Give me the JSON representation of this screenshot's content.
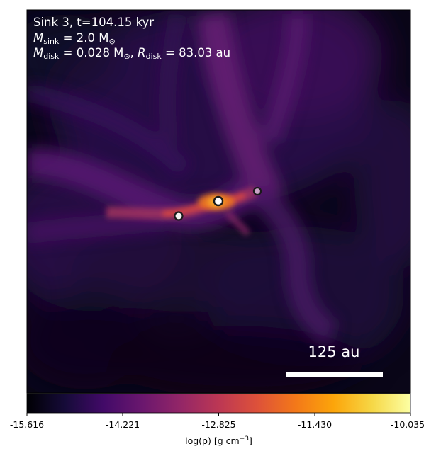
{
  "panel": {
    "title_line1": "Sink 3, t=104.15 kyr",
    "mass_symbol": "M",
    "mass_sub": "sink",
    "mass_value": " = 2.0 M",
    "mass_sun_sub": "⊙",
    "disk_symbol": "M",
    "disk_sub": "disk",
    "disk_value": " = 0.028 M",
    "disk_sun_sub": "⊙",
    "disk_sep": ", ",
    "radius_symbol": "R",
    "radius_sub": "disk",
    "radius_value": " = 83.03 au"
  },
  "scale_bar": {
    "label": "125 au",
    "color": "#ffffff"
  },
  "sinks": [
    {
      "name": "sink-left",
      "fill": "#f2f2f2"
    },
    {
      "name": "sink-center",
      "fill": "#ffffff"
    },
    {
      "name": "sink-right",
      "fill": "#c9a3c6"
    }
  ],
  "colorbar": {
    "colormap": "inferno",
    "min": -15.616,
    "max": -10.035,
    "ticks": [
      "-15.616",
      "-14.221",
      "-12.825",
      "-11.430",
      "-10.035"
    ],
    "label_prefix": "log(ρ) [g cm",
    "label_exp": "−3",
    "label_suffix": "]"
  },
  "colors": {
    "background_dark": "#07040f",
    "filament_purple": "#5a1a74",
    "core_orange": "#f07a1a",
    "core_yellow": "#fbe47a"
  }
}
